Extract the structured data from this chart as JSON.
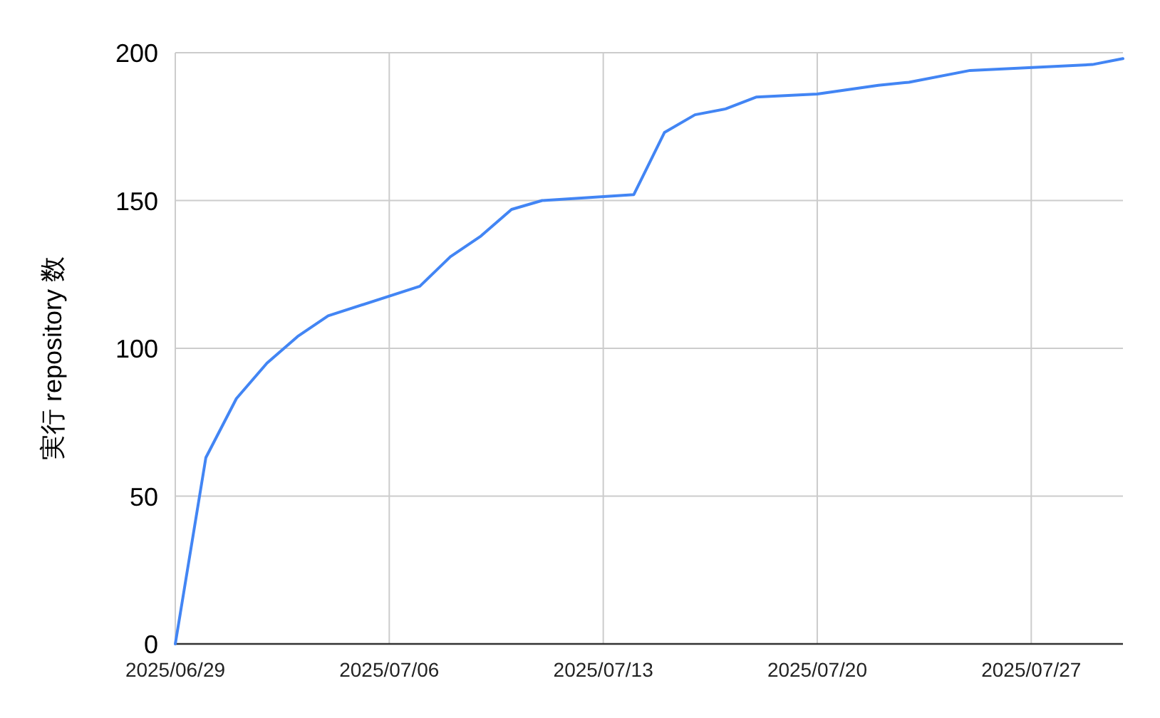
{
  "chart_data": {
    "type": "line",
    "ylabel": "実行 repository 数",
    "x": [
      "2025-06-29",
      "2025-06-30",
      "2025-07-01",
      "2025-07-02",
      "2025-07-03",
      "2025-07-04",
      "2025-07-07",
      "2025-07-08",
      "2025-07-09",
      "2025-07-10",
      "2025-07-11",
      "2025-07-14",
      "2025-07-15",
      "2025-07-16",
      "2025-07-17",
      "2025-07-18",
      "2025-07-20",
      "2025-07-22",
      "2025-07-23",
      "2025-07-25",
      "2025-07-29",
      "2025-07-30"
    ],
    "series": [
      {
        "color": "#4285f4",
        "values": [
          0,
          63,
          83,
          95,
          104,
          111,
          121,
          131,
          138,
          147,
          150,
          152,
          173,
          179,
          181,
          185,
          186,
          189,
          190,
          194,
          196,
          198
        ]
      }
    ],
    "xlim": [
      "2025-06-29",
      "2025-07-30"
    ],
    "xticks": [
      {
        "value": "2025-06-29",
        "label": "2025/06/29"
      },
      {
        "value": "2025-07-06",
        "label": "2025/07/06"
      },
      {
        "value": "2025-07-13",
        "label": "2025/07/13"
      },
      {
        "value": "2025-07-20",
        "label": "2025/07/20"
      },
      {
        "value": "2025-07-27",
        "label": "2025/07/27"
      }
    ],
    "ylim": [
      0,
      200
    ],
    "yticks": [
      0,
      50,
      100,
      150,
      200
    ],
    "grid": true
  }
}
